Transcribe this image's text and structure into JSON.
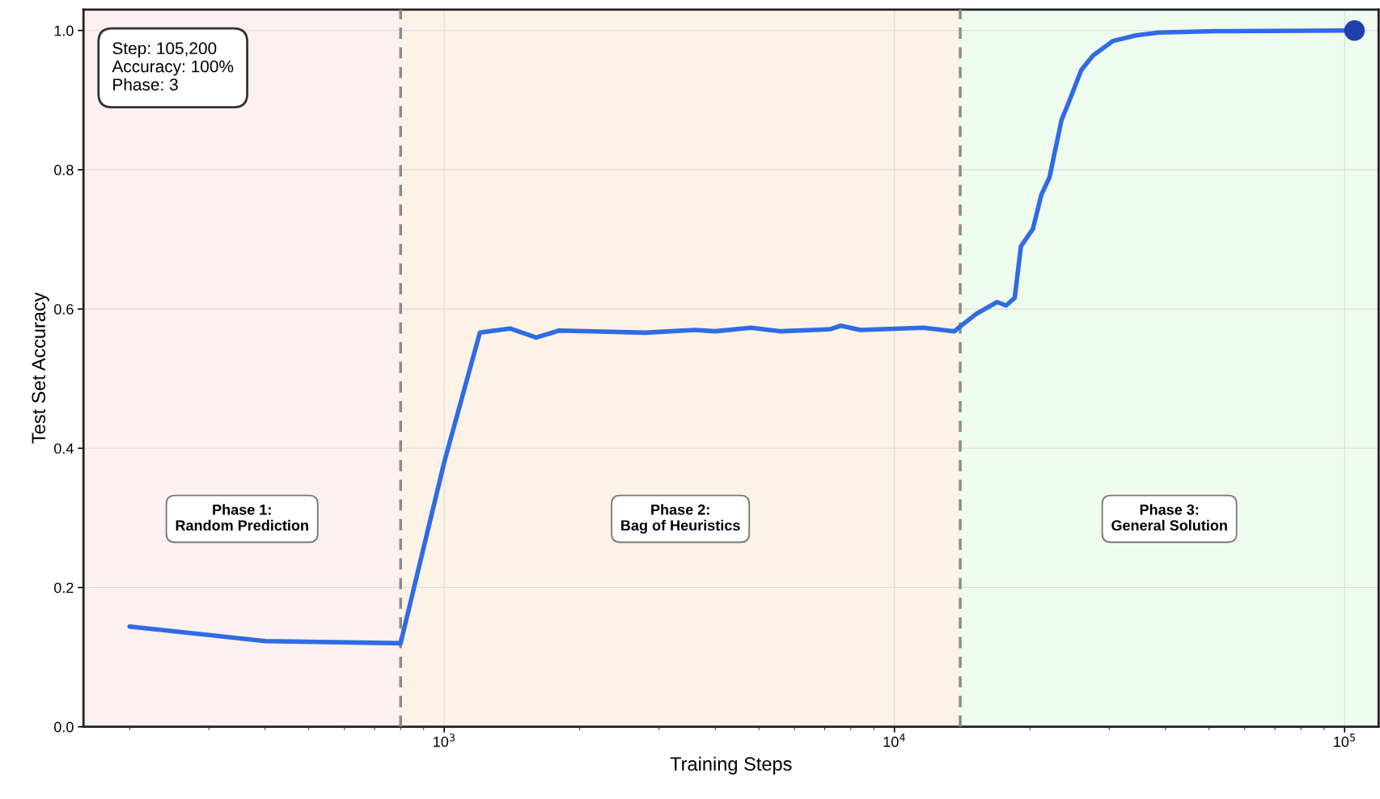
{
  "chart_data": {
    "type": "line",
    "xlabel": "Training Steps",
    "ylabel": "Test Set Accuracy",
    "log": "x",
    "grid": true,
    "legend": false,
    "marker": "none",
    "line_style": "solid",
    "xlim": [
      158,
      119000
    ],
    "xticks": [
      {
        "value": 1000,
        "label": "10$^{3}$"
      },
      {
        "value": 10000,
        "label": "10$^{4}$"
      },
      {
        "value": 100000,
        "label": "10$^{5}$"
      }
    ],
    "ylim": [
      0,
      1.03
    ],
    "yticks": [
      {
        "value": 0,
        "label": "0.0"
      },
      {
        "value": 0.2,
        "label": "0.2"
      },
      {
        "value": 0.4,
        "label": "0.4"
      },
      {
        "value": 0.6,
        "label": "0.6"
      },
      {
        "value": 0.8,
        "label": "0.8"
      },
      {
        "value": 1.0,
        "label": "1.0"
      }
    ],
    "series": [
      {
        "color": "#2f6be4",
        "x": [
          200,
          400,
          800,
          1000,
          1200,
          1400,
          1600,
          1800,
          2800,
          3600,
          4000,
          4800,
          5600,
          7200,
          7600,
          8400,
          11600,
          13600,
          14000,
          15200,
          16900,
          17700,
          18500,
          19100,
          20300,
          21200,
          22100,
          23500,
          24500,
          26000,
          27600,
          30600,
          34400,
          38600,
          51800,
          100000,
          105200
        ],
        "values": [
          0.144,
          0.123,
          0.12,
          0.38,
          0.566,
          0.572,
          0.559,
          0.569,
          0.566,
          0.57,
          0.568,
          0.573,
          0.568,
          0.571,
          0.576,
          0.57,
          0.573,
          0.568,
          0.575,
          0.593,
          0.61,
          0.605,
          0.616,
          0.69,
          0.715,
          0.764,
          0.789,
          0.871,
          0.9,
          0.943,
          0.964,
          0.985,
          0.993,
          0.997,
          0.999,
          1.0,
          1.0
        ]
      },
      {
        "type": "scatter",
        "marker": "circle",
        "color": "#1f3fae",
        "x": [
          105200
        ],
        "values": [
          1.0
        ]
      }
    ],
    "bands": [
      {
        "axis": "x",
        "from": 158,
        "to": 800,
        "label": "Phase 1:\nRandom Prediction",
        "color": "#fdf0f0"
      },
      {
        "axis": "x",
        "from": 800,
        "to": 14000,
        "label": "Phase 2:\nBag of Heuristics",
        "color": "#fdf2e6"
      },
      {
        "axis": "x",
        "from": 14000,
        "to": 119000,
        "label": "Phase 3:\nGeneral Solution",
        "color": "#f0fbf0"
      }
    ],
    "ref_lines": [
      {
        "axis": "x",
        "value": 800,
        "color": "#8a8a8a",
        "line_style": "dashed"
      },
      {
        "axis": "x",
        "value": 14000,
        "color": "#8a8a8a",
        "line_style": "dashed"
      }
    ],
    "annotations": [
      "Step: 105,200\nAccuracy: 100%\nPhase: 3"
    ]
  }
}
